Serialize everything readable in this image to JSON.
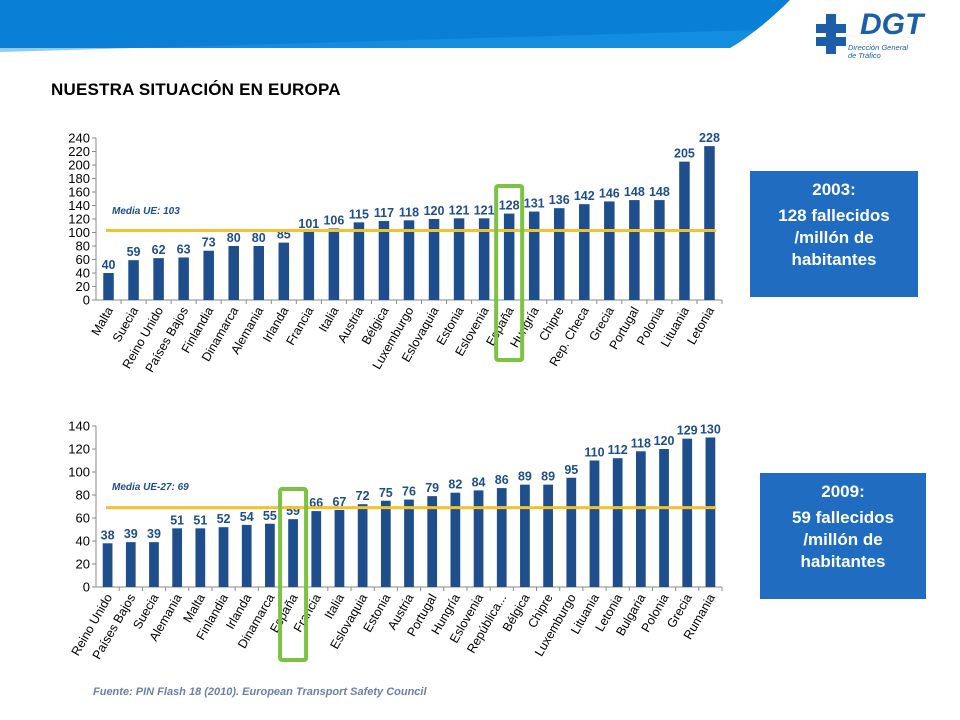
{
  "header": {
    "logo_text": "DGT",
    "logo_subtitle": "Dirección General\nde Tráfico",
    "title": "NUESTRA SITUACIÓN EN EUROPA"
  },
  "boxes": [
    {
      "year": "2003:",
      "text": "128 fallecidos /millón de habitantes"
    },
    {
      "year": "2009:",
      "text": "59 fallecidos /millón de habitantes"
    }
  ],
  "source": "Fuente: PIN Flash 18 (2010). European Transport Safety Council",
  "colors": {
    "bar": "#1f4e8c",
    "mean_line": "#f5c22b",
    "highlight": "#7dc242",
    "box": "#1f6cc1",
    "accent": "#0a7fd6"
  },
  "chart_data": [
    {
      "type": "bar",
      "categories": [
        "Malta",
        "Suecia",
        "Reino Unido",
        "Países Bajos",
        "Finlandia",
        "Dinamarca",
        "Alemania",
        "Irlanda",
        "Francia",
        "Italia",
        "Austria",
        "Bélgica",
        "Luxemburgo",
        "Eslovaquia",
        "Estonia",
        "Eslovenia",
        "España",
        "Hungría",
        "Chipre",
        "Rep. Checa",
        "Grecia",
        "Portugal",
        "Polonia",
        "Lituania",
        "Letonia"
      ],
      "values": [
        40,
        59,
        62,
        63,
        73,
        80,
        80,
        85,
        101,
        106,
        115,
        117,
        118,
        120,
        121,
        121,
        128,
        131,
        136,
        142,
        146,
        148,
        148,
        205,
        228
      ],
      "value_labels": [
        "40",
        "59",
        "62",
        "63",
        "73",
        "80",
        "80",
        "85",
        "101",
        "106",
        "115",
        "117",
        "118",
        "120",
        "121",
        "121",
        "128",
        "131",
        "136",
        "142",
        "146",
        "148",
        "148",
        "205",
        "228"
      ],
      "yticks": [
        0,
        20,
        40,
        60,
        80,
        100,
        120,
        140,
        160,
        180,
        200,
        220,
        240
      ],
      "ylim": [
        0,
        240
      ],
      "mean": 103,
      "mean_label": "Media UE: 103",
      "highlight": "España",
      "grid": false
    },
    {
      "type": "bar",
      "categories": [
        "Reino Unido",
        "Países Bajos",
        "Suecia",
        "Alemania",
        "Malta",
        "Finlandia",
        "Irlanda",
        "Dinamarca",
        "España",
        "Francia",
        "Italia",
        "Eslovaquia",
        "Estonia",
        "Austria",
        "Portugal",
        "Hungría",
        "Eslovenia",
        "República...",
        "Bélgica",
        "Chipre",
        "Luxemburgo",
        "Lituania",
        "Letonia",
        "Bulgaria",
        "Polonia",
        "Grecia",
        "Rumania"
      ],
      "values": [
        38,
        39,
        39,
        51,
        51,
        52,
        54,
        55,
        59,
        66,
        67,
        72,
        75,
        76,
        79,
        82,
        84,
        86,
        89,
        89,
        95,
        110,
        112,
        118,
        120,
        129,
        130
      ],
      "value_labels": [
        "38",
        "39",
        "39",
        "51",
        "51",
        "52",
        "54",
        "55",
        "59",
        "66",
        "67",
        "72",
        "75",
        "76",
        "79",
        "82",
        "84",
        "86",
        "89",
        "89",
        "95",
        "110",
        "112",
        "118",
        "120",
        "129",
        "130"
      ],
      "yticks": [
        0,
        20,
        40,
        60,
        80,
        100,
        120,
        140
      ],
      "ylim": [
        0,
        140
      ],
      "mean": 69,
      "mean_label": "Media UE-27: 69",
      "highlight": "España",
      "grid": false
    }
  ]
}
